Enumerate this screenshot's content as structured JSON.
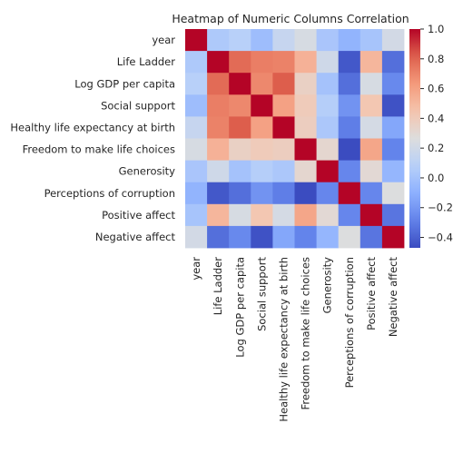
{
  "chart_data": {
    "type": "heatmap",
    "title": "Heatmap of Numeric Columns Correlation",
    "rows": [
      "year",
      "Life Ladder",
      "Log GDP per capita",
      "Social support",
      "Healthy life expectancy at birth",
      "Freedom to make life choices",
      "Generosity",
      "Perceptions of corruption",
      "Positive affect",
      "Negative affect"
    ],
    "columns": [
      "year",
      "Life Ladder",
      "Log GDP per capita",
      "Social support",
      "Healthy life expectancy at birth",
      "Freedom to make life choices",
      "Generosity",
      "Perceptions of corruption",
      "Positive affect",
      "Negative affect"
    ],
    "values": [
      [
        1.0,
        0.04,
        0.08,
        -0.03,
        0.15,
        0.23,
        0.02,
        -0.08,
        0.01,
        0.21
      ],
      [
        0.04,
        1.0,
        0.78,
        0.72,
        0.71,
        0.53,
        0.19,
        -0.43,
        0.51,
        -0.35
      ],
      [
        0.08,
        0.78,
        1.0,
        0.69,
        0.82,
        0.36,
        -0.0,
        -0.35,
        0.23,
        -0.26
      ],
      [
        -0.03,
        0.72,
        0.69,
        1.0,
        0.6,
        0.4,
        0.07,
        -0.22,
        0.43,
        -0.45
      ],
      [
        0.15,
        0.71,
        0.82,
        0.6,
        1.0,
        0.38,
        0.03,
        -0.3,
        0.22,
        -0.14
      ],
      [
        0.23,
        0.53,
        0.36,
        0.4,
        0.38,
        1.0,
        0.32,
        -0.47,
        0.58,
        -0.28
      ],
      [
        0.02,
        0.19,
        -0.0,
        0.07,
        0.03,
        0.32,
        1.0,
        -0.27,
        0.3,
        -0.07
      ],
      [
        -0.08,
        -0.43,
        -0.35,
        -0.22,
        -0.3,
        -0.47,
        -0.27,
        1.0,
        -0.27,
        0.26
      ],
      [
        0.01,
        0.51,
        0.23,
        0.43,
        0.22,
        0.58,
        0.3,
        -0.27,
        1.0,
        -0.33
      ],
      [
        0.21,
        -0.35,
        -0.26,
        -0.45,
        -0.14,
        -0.28,
        -0.07,
        0.26,
        -0.33,
        1.0
      ]
    ],
    "colormap": "coolwarm",
    "colorbar": {
      "range": [
        -0.47,
        1.0
      ],
      "ticks": [
        -0.4,
        -0.2,
        0.0,
        0.2,
        0.4,
        0.6,
        0.8,
        1.0
      ],
      "tick_labels": [
        "−0.4",
        "−0.2",
        "0.0",
        "0.2",
        "0.4",
        "0.6",
        "0.8",
        "1.0"
      ]
    }
  }
}
